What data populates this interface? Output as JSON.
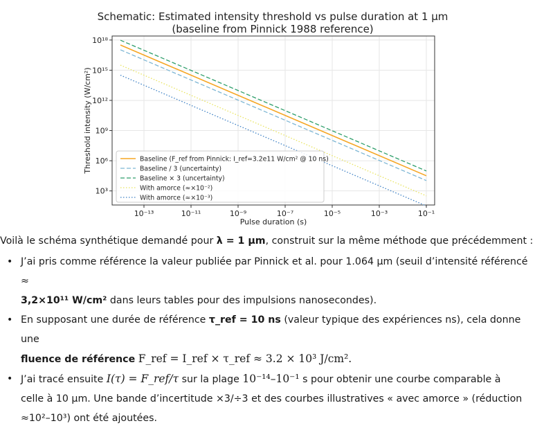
{
  "chart_data": {
    "type": "line",
    "title": "Schematic: Estimated intensity threshold vs pulse duration at 1 μm",
    "subtitle": "(baseline from Pinnick 1988 reference)",
    "xlabel": "Pulse duration (s)",
    "ylabel": "Threshold intensity (W/cm²)",
    "xscale": "log",
    "yscale": "log",
    "xlim_log10": [
      -14,
      -1
    ],
    "ylim_log10": [
      1.6,
      18.4
    ],
    "grid": true,
    "x_ticks": [
      {
        "exp": -13,
        "label": "10⁻¹³"
      },
      {
        "exp": -11,
        "label": "10⁻¹¹"
      },
      {
        "exp": -9,
        "label": "10⁻⁹"
      },
      {
        "exp": -7,
        "label": "10⁻⁷"
      },
      {
        "exp": -5,
        "label": "10⁻⁵"
      },
      {
        "exp": -3,
        "label": "10⁻³"
      },
      {
        "exp": -1,
        "label": "10⁻¹"
      }
    ],
    "y_ticks": [
      {
        "exp": 3,
        "label": "10³"
      },
      {
        "exp": 6,
        "label": "10⁶"
      },
      {
        "exp": 9,
        "label": "10⁹"
      },
      {
        "exp": 12,
        "label": "10¹²"
      },
      {
        "exp": 15,
        "label": "10¹⁵"
      },
      {
        "exp": 18,
        "label": "10¹⁸"
      }
    ],
    "legend_position": "lower-left",
    "series": [
      {
        "name": "Baseline (F_ref from Pinnick: I_ref=3.2e11 W/cm² @ 10 ns)",
        "color": "#f5a623",
        "dash": "solid",
        "x_log10": [
          -14,
          -1
        ],
        "y_log10": [
          17.505,
          4.505
        ]
      },
      {
        "name": "Baseline / 3 (uncertainty)",
        "color": "#7db6d4",
        "dash": "dashed",
        "x_log10": [
          -14,
          -1
        ],
        "y_log10": [
          17.028,
          4.028
        ]
      },
      {
        "name": "Baseline × 3 (uncertainty)",
        "color": "#2e9e6a",
        "dash": "dashed",
        "x_log10": [
          -14,
          -1
        ],
        "y_log10": [
          17.982,
          4.982
        ]
      },
      {
        "name": "With amorce (≈×10⁻²)",
        "color": "#e8e35c",
        "dash": "dotted",
        "x_log10": [
          -14,
          -1
        ],
        "y_log10": [
          15.505,
          2.505
        ]
      },
      {
        "name": "With amorce (≈×10⁻³)",
        "color": "#3b7fc4",
        "dash": "dotted",
        "x_log10": [
          -14,
          -1
        ],
        "y_log10": [
          14.505,
          1.505
        ]
      }
    ]
  },
  "answer": {
    "intro_pre": "Voilà le schéma synthétique demandé pour ",
    "intro_bold": "λ = 1 µm",
    "intro_post": ", construit sur la même méthode que précédemment :",
    "bullet_char": "•",
    "b1_pre": "J’ai pris comme référence la valeur publiée par Pinnick et al. pour 1.064 µm (seuil d’intensité référencé ≈",
    "b1_bold": "3,2×10¹¹ W/cm²",
    "b1_post": " dans leurs tables pour des impulsions nanosecondes).",
    "b2_pre": "En supposant une durée de référence ",
    "b2_bold1": "τ_ref = 10 ns",
    "b2_mid": " (valeur typique des expériences ns), cela donne une",
    "b2_bold2": "fluence de référence",
    "b2_math": "F_ref = I_ref × τ_ref ≈ 3.2 × 10³ J/cm².",
    "b3_pre": "J’ai tracé ensuite ",
    "b3_math1": "I(τ) = F_ref/τ",
    "b3_mid": " sur la plage ",
    "b3_math2": "10⁻¹⁴–10⁻¹",
    "b3_post": " s pour obtenir une courbe comparable à",
    "b3_line2": "celle à 10 µm. Une bande d’incertitude ×3/÷3 et des courbes illustratives « avec amorce » (réduction",
    "b3_line3": "≈10²–10³) ont été ajoutées."
  }
}
